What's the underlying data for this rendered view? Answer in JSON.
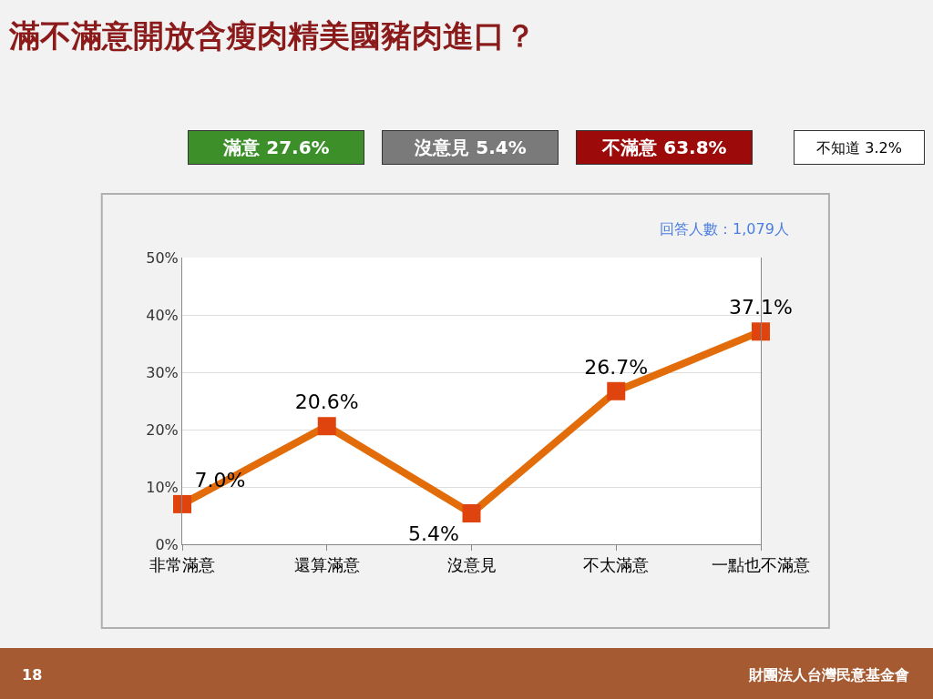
{
  "chart_data": {
    "type": "line",
    "title": "滿不滿意開放含瘦肉精美國豬肉進口？",
    "categories": [
      "非常滿意",
      "還算滿意",
      "沒意見",
      "不太滿意",
      "一點也不滿意"
    ],
    "series": [
      {
        "color": "#e36c0a",
        "values": [
          7.0,
          20.6,
          5.4,
          26.7,
          37.1
        ],
        "value_labels": [
          "7.0%",
          "20.6%",
          "5.4%",
          "26.7%",
          "37.1%"
        ]
      }
    ],
    "ylim": [
      0,
      50
    ],
    "yticks": [
      {
        "value": 0,
        "label": "0%"
      },
      {
        "value": 10,
        "label": "10%"
      },
      {
        "value": 20,
        "label": "20%"
      },
      {
        "value": 30,
        "label": "30%"
      },
      {
        "value": 40,
        "label": "40%"
      },
      {
        "value": 50,
        "label": "50%"
      }
    ],
    "grid": "y",
    "legend": false,
    "marker": "square",
    "line_style": "solid",
    "annotations": [
      "滿意 27.6%",
      "沒意見 5.4%",
      "不滿意 63.8%",
      "不知道 3.2%",
      "回答人數：1,079人",
      "18",
      "財團法人台灣民意基金會"
    ]
  }
}
